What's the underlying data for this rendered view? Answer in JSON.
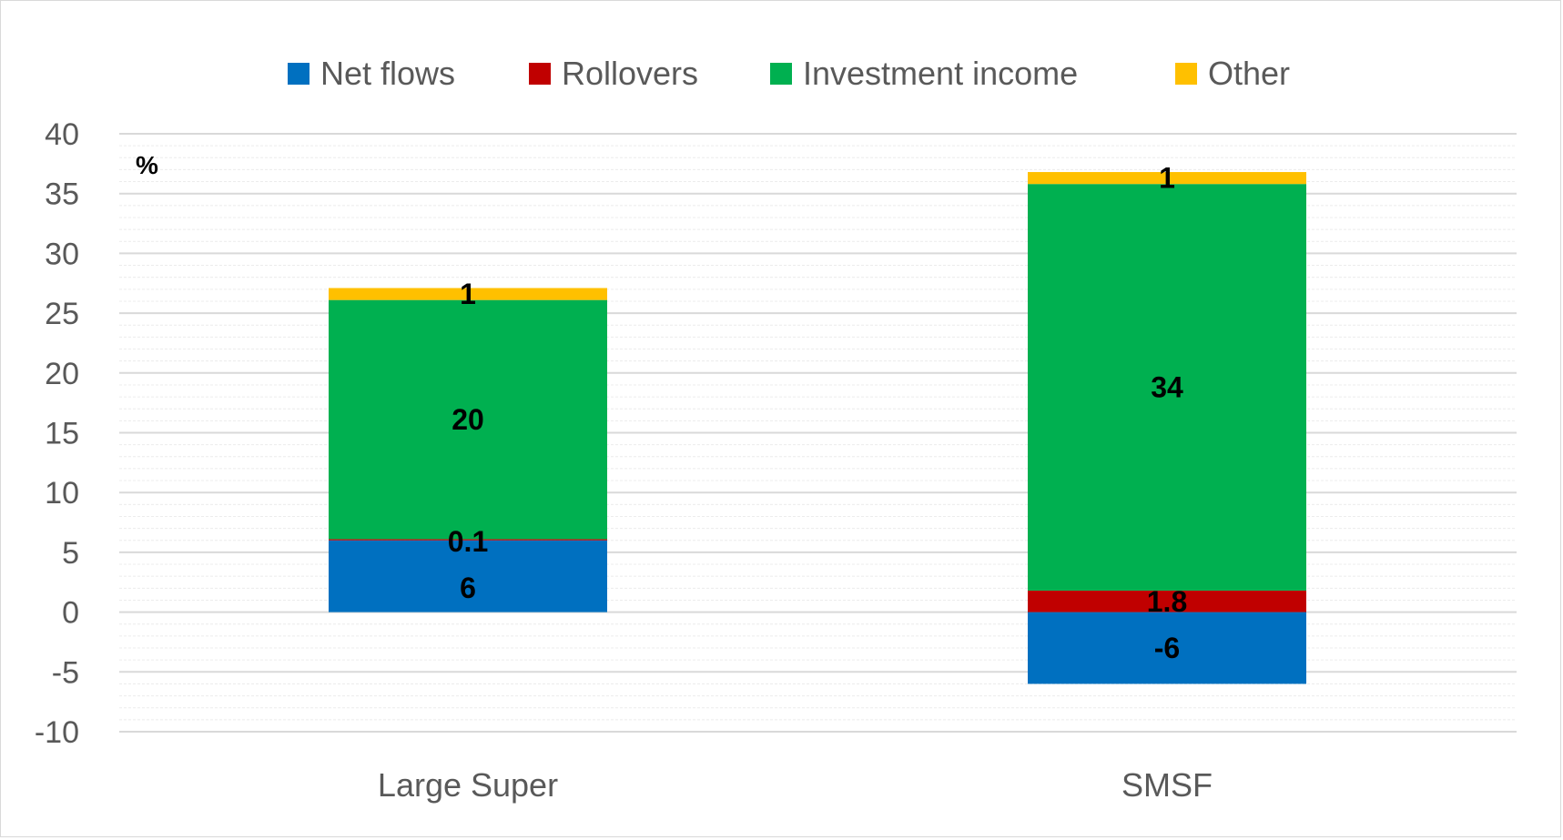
{
  "chart_data": {
    "type": "bar",
    "stacked": true,
    "unit_label": "%",
    "categories": [
      "Large Super",
      "SMSF"
    ],
    "ylim": [
      -10,
      40
    ],
    "yticks": [
      40,
      35,
      30,
      25,
      20,
      15,
      10,
      5,
      0,
      -5,
      -10
    ],
    "ytick_labels": [
      "40",
      "35",
      "30",
      "25",
      "20",
      "15",
      "10",
      "5",
      "0",
      "-5",
      "-10"
    ],
    "grid": true,
    "legend_position": "top",
    "series": [
      {
        "name": "Net flows",
        "color": "#0070C0",
        "values": [
          6,
          -6
        ],
        "labels": [
          "6",
          "-6"
        ]
      },
      {
        "name": "Rollovers",
        "color": "#C00000",
        "values": [
          0.1,
          1.8
        ],
        "labels": [
          "0.1",
          "1.8"
        ]
      },
      {
        "name": "Investment income",
        "color": "#00B050",
        "values": [
          20,
          34
        ],
        "labels": [
          "20",
          "34"
        ]
      },
      {
        "name": "Other",
        "color": "#FFC000",
        "values": [
          1,
          1
        ],
        "labels": [
          "1",
          "1"
        ]
      }
    ]
  }
}
